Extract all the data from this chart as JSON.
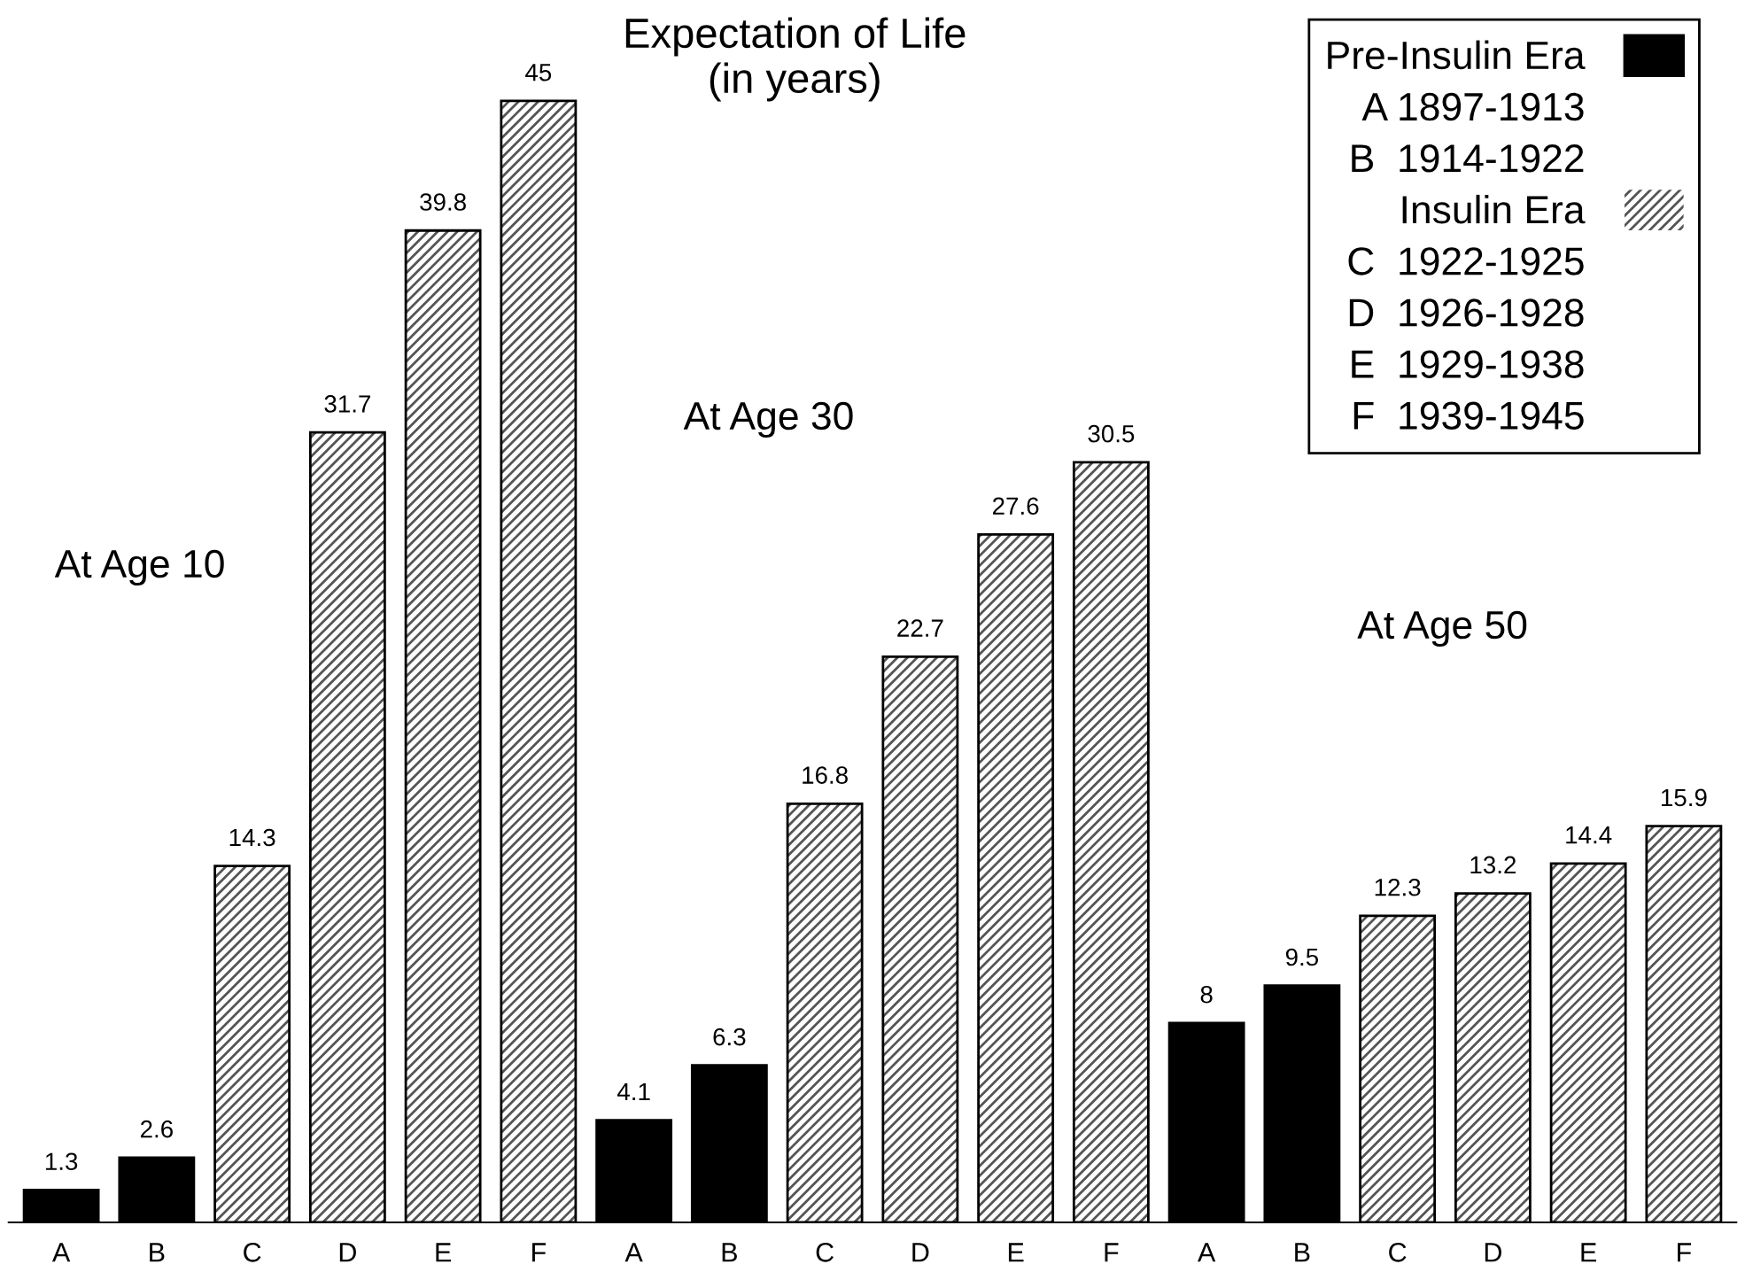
{
  "chart_data": {
    "type": "bar",
    "title": "Expectation of Life\n(in years)",
    "categories": [
      "A",
      "B",
      "C",
      "D",
      "E",
      "F",
      "A",
      "B",
      "C",
      "D",
      "E",
      "F",
      "A",
      "B",
      "C",
      "D",
      "E",
      "F"
    ],
    "series": [
      {
        "name": "Pre-Insulin Era",
        "color": "#000000",
        "values": [
          1.3,
          2.6,
          null,
          null,
          null,
          null,
          4.1,
          6.3,
          null,
          null,
          null,
          null,
          8,
          9.5,
          null,
          null,
          null,
          null
        ]
      },
      {
        "name": "Insulin Era",
        "color": "#555555",
        "values": [
          null,
          null,
          14.3,
          31.7,
          39.8,
          45,
          null,
          null,
          16.8,
          22.7,
          27.6,
          30.5,
          null,
          null,
          12.3,
          13.2,
          14.4,
          15.9
        ]
      }
    ],
    "stacked": true,
    "data_labels": true,
    "legend": "top right",
    "annotations": [
      "At Age 10",
      "At Age 30",
      "At Age 50",
      "A 1897-1913",
      "B  1914-1922",
      "C  1922-1925",
      "D  1926-1928",
      "E  1929-1938",
      "F  1939-1945"
    ]
  }
}
